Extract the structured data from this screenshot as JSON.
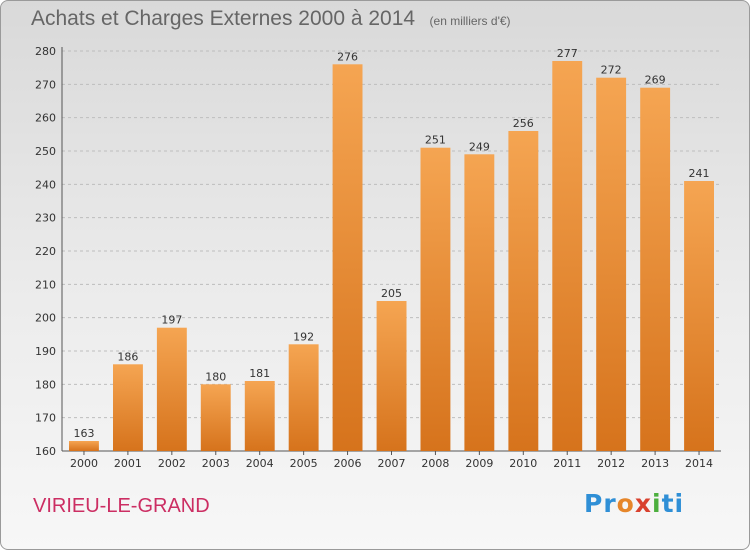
{
  "header": {
    "title": "Achats et Charges Externes 2000 à 2014",
    "unit": "(en milliers d'€)"
  },
  "footer": {
    "commune": "VIRIEU-LE-GRAND",
    "brand": "Proxiti"
  },
  "colors": {
    "bar_light": "#f5a552",
    "bar_dark": "#d6731c",
    "commune_text": "#cc2e63"
  },
  "chart_data": {
    "type": "bar",
    "title": "Achats et Charges Externes 2000 à 2014",
    "subtitle": "(en milliers d'€)",
    "xlabel": "",
    "ylabel": "",
    "categories": [
      "2000",
      "2001",
      "2002",
      "2003",
      "2004",
      "2005",
      "2006",
      "2007",
      "2008",
      "2009",
      "2010",
      "2011",
      "2012",
      "2013",
      "2014"
    ],
    "values": [
      163,
      186,
      197,
      180,
      181,
      192,
      276,
      205,
      251,
      249,
      256,
      277,
      272,
      269,
      241
    ],
    "ylim": [
      160,
      280
    ],
    "yticks": [
      160,
      170,
      180,
      190,
      200,
      210,
      220,
      230,
      240,
      250,
      260,
      270,
      280
    ],
    "grid": true,
    "legend": "none"
  }
}
